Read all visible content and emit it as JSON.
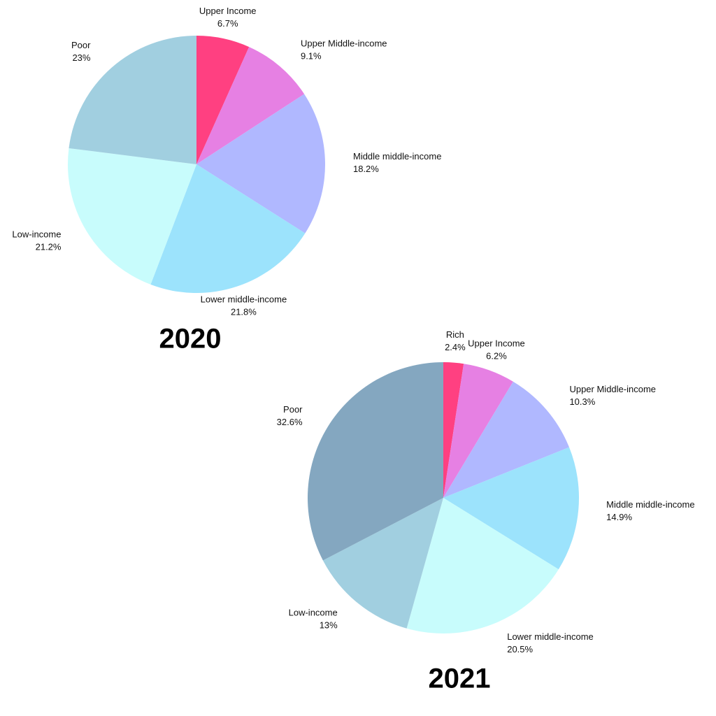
{
  "chart_data": [
    {
      "type": "pie",
      "title": "2020",
      "categories": [
        "Upper Income",
        "Upper Middle-income",
        "Middle middle-income",
        "Lower middle-income",
        "Low-income",
        "Poor"
      ],
      "values": [
        6.7,
        9.1,
        18.2,
        21.8,
        21.2,
        23
      ],
      "value_labels": [
        "6.7%",
        "9.1%",
        "18.2%",
        "21.8%",
        "21.2%",
        "23%"
      ],
      "colors": [
        "#ff4081",
        "#e680e3",
        "#b0b8ff",
        "#9ce3fc",
        "#c8fcfc",
        "#a1cfe0"
      ]
    },
    {
      "type": "pie",
      "title": "2021",
      "categories": [
        "Rich",
        "Upper Income",
        "Upper Middle-income",
        "Middle middle-income",
        "Lower middle-income",
        "Low-income",
        "Poor"
      ],
      "values": [
        2.4,
        6.2,
        10.3,
        14.9,
        20.5,
        13,
        32.6
      ],
      "value_labels": [
        "2.4%",
        "6.2%",
        "10.3%",
        "14.9%",
        "20.5%",
        "13%",
        "32.6%"
      ],
      "colors": [
        "#ff4081",
        "#e680e3",
        "#b0b8ff",
        "#9ce3fc",
        "#c8fcfc",
        "#a1cfe0",
        "#84a7c0"
      ]
    }
  ]
}
